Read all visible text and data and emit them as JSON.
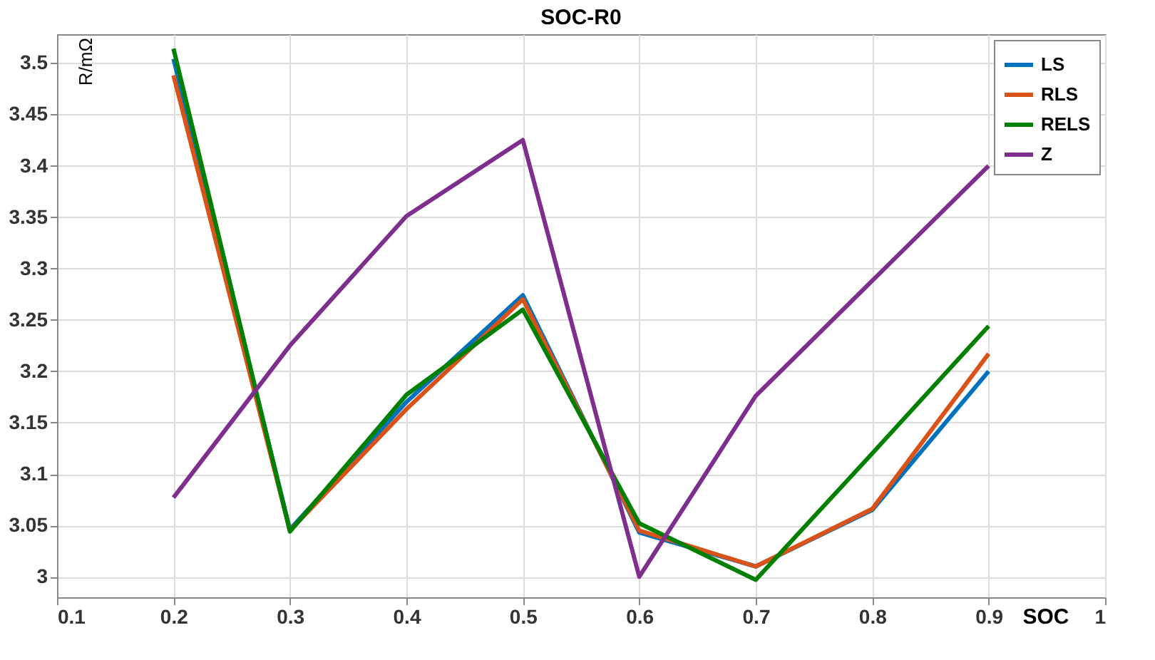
{
  "chart_data": {
    "type": "line",
    "title": "SOC-R0",
    "xlabel": "SOC",
    "ylabel": "R/mΩ",
    "x": [
      0.2,
      0.3,
      0.4,
      0.5,
      0.6,
      0.7,
      0.8,
      0.9
    ],
    "series": [
      {
        "name": "LS",
        "color": "#0072bd",
        "values": [
          3.504,
          3.046,
          3.17,
          3.274,
          3.043,
          3.01,
          3.065,
          3.2
        ]
      },
      {
        "name": "RLS",
        "color": "#d95319",
        "values": [
          3.488,
          3.045,
          3.163,
          3.27,
          3.045,
          3.01,
          3.066,
          3.217
        ]
      },
      {
        "name": "RELS",
        "color": "#008000",
        "values": [
          3.514,
          3.044,
          3.177,
          3.26,
          3.052,
          2.997,
          3.12,
          3.244
        ]
      },
      {
        "name": "Z",
        "color": "#7e2f8e",
        "values": [
          3.077,
          3.225,
          3.351,
          3.425,
          3.0,
          3.176,
          3.288,
          3.4
        ]
      }
    ],
    "xlim": [
      0.1,
      1
    ],
    "xticks": [
      0.1,
      0.2,
      0.3,
      0.4,
      0.5,
      0.6,
      0.7,
      0.8,
      0.9,
      1
    ],
    "ylim": [
      2.98,
      3.528
    ],
    "yticks": [
      3,
      3.05,
      3.1,
      3.15,
      3.2,
      3.25,
      3.3,
      3.35,
      3.4,
      3.45,
      3.5
    ],
    "grid": true,
    "legend": "top right",
    "marker": "none",
    "line_style": "solid"
  }
}
